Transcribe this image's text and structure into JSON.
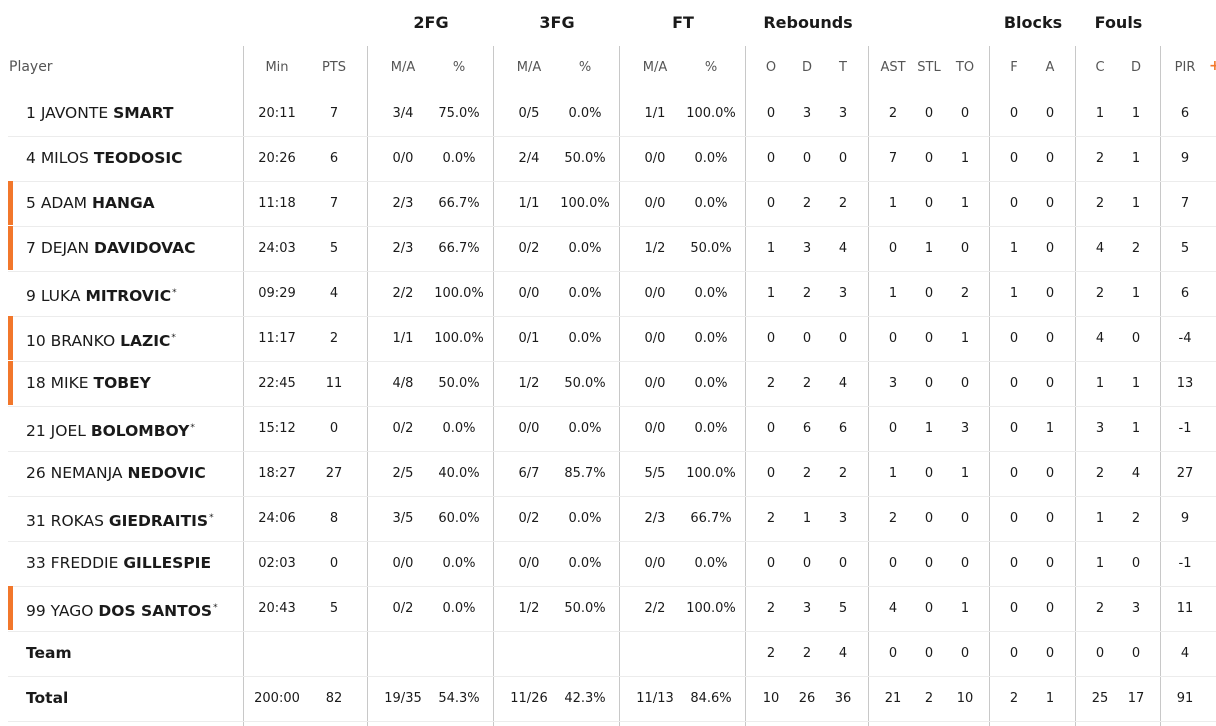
{
  "header": {
    "groups": {
      "fg2": "2FG",
      "fg3": "3FG",
      "ft": "FT",
      "rebounds": "Rebounds",
      "blocks": "Blocks",
      "fouls": "Fouls"
    },
    "columns": {
      "player": "Player",
      "min": "Min",
      "pts": "PTS",
      "fg2_ma": "M/A",
      "fg2_pct": "%",
      "fg3_ma": "M/A",
      "fg3_pct": "%",
      "ft_ma": "M/A",
      "ft_pct": "%",
      "reb_o": "O",
      "reb_d": "D",
      "reb_t": "T",
      "ast": "AST",
      "stl": "STL",
      "to": "TO",
      "blk_f": "F",
      "blk_a": "A",
      "foul_c": "C",
      "foul_d": "D",
      "pir": "PIR"
    },
    "more_icon": "+"
  },
  "players": [
    {
      "num": "1",
      "first": "JAVONTE",
      "last": "SMART",
      "mark": "",
      "starter": false,
      "min": "20:11",
      "pts": "7",
      "fg2_ma": "3/4",
      "fg2_pct": "75.0%",
      "fg3_ma": "0/5",
      "fg3_pct": "0.0%",
      "ft_ma": "1/1",
      "ft_pct": "100.0%",
      "reb_o": "0",
      "reb_d": "3",
      "reb_t": "3",
      "ast": "2",
      "stl": "0",
      "to": "0",
      "blk_f": "0",
      "blk_a": "0",
      "foul_c": "1",
      "foul_d": "1",
      "pir": "6"
    },
    {
      "num": "4",
      "first": "MILOS",
      "last": "TEODOSIC",
      "mark": "",
      "starter": false,
      "min": "20:26",
      "pts": "6",
      "fg2_ma": "0/0",
      "fg2_pct": "0.0%",
      "fg3_ma": "2/4",
      "fg3_pct": "50.0%",
      "ft_ma": "0/0",
      "ft_pct": "0.0%",
      "reb_o": "0",
      "reb_d": "0",
      "reb_t": "0",
      "ast": "7",
      "stl": "0",
      "to": "1",
      "blk_f": "0",
      "blk_a": "0",
      "foul_c": "2",
      "foul_d": "1",
      "pir": "9"
    },
    {
      "num": "5",
      "first": "ADAM",
      "last": "HANGA",
      "mark": "",
      "starter": true,
      "min": "11:18",
      "pts": "7",
      "fg2_ma": "2/3",
      "fg2_pct": "66.7%",
      "fg3_ma": "1/1",
      "fg3_pct": "100.0%",
      "ft_ma": "0/0",
      "ft_pct": "0.0%",
      "reb_o": "0",
      "reb_d": "2",
      "reb_t": "2",
      "ast": "1",
      "stl": "0",
      "to": "1",
      "blk_f": "0",
      "blk_a": "0",
      "foul_c": "2",
      "foul_d": "1",
      "pir": "7"
    },
    {
      "num": "7",
      "first": "DEJAN",
      "last": "DAVIDOVAC",
      "mark": "",
      "starter": true,
      "min": "24:03",
      "pts": "5",
      "fg2_ma": "2/3",
      "fg2_pct": "66.7%",
      "fg3_ma": "0/2",
      "fg3_pct": "0.0%",
      "ft_ma": "1/2",
      "ft_pct": "50.0%",
      "reb_o": "1",
      "reb_d": "3",
      "reb_t": "4",
      "ast": "0",
      "stl": "1",
      "to": "0",
      "blk_f": "1",
      "blk_a": "0",
      "foul_c": "4",
      "foul_d": "2",
      "pir": "5"
    },
    {
      "num": "9",
      "first": "LUKA",
      "last": "MITROVIC",
      "mark": "*",
      "starter": false,
      "min": "09:29",
      "pts": "4",
      "fg2_ma": "2/2",
      "fg2_pct": "100.0%",
      "fg3_ma": "0/0",
      "fg3_pct": "0.0%",
      "ft_ma": "0/0",
      "ft_pct": "0.0%",
      "reb_o": "1",
      "reb_d": "2",
      "reb_t": "3",
      "ast": "1",
      "stl": "0",
      "to": "2",
      "blk_f": "1",
      "blk_a": "0",
      "foul_c": "2",
      "foul_d": "1",
      "pir": "6"
    },
    {
      "num": "10",
      "first": "BRANKO",
      "last": "LAZIC",
      "mark": "*",
      "starter": true,
      "min": "11:17",
      "pts": "2",
      "fg2_ma": "1/1",
      "fg2_pct": "100.0%",
      "fg3_ma": "0/1",
      "fg3_pct": "0.0%",
      "ft_ma": "0/0",
      "ft_pct": "0.0%",
      "reb_o": "0",
      "reb_d": "0",
      "reb_t": "0",
      "ast": "0",
      "stl": "0",
      "to": "1",
      "blk_f": "0",
      "blk_a": "0",
      "foul_c": "4",
      "foul_d": "0",
      "pir": "-4"
    },
    {
      "num": "18",
      "first": "MIKE",
      "last": "TOBEY",
      "mark": "",
      "starter": true,
      "min": "22:45",
      "pts": "11",
      "fg2_ma": "4/8",
      "fg2_pct": "50.0%",
      "fg3_ma": "1/2",
      "fg3_pct": "50.0%",
      "ft_ma": "0/0",
      "ft_pct": "0.0%",
      "reb_o": "2",
      "reb_d": "2",
      "reb_t": "4",
      "ast": "3",
      "stl": "0",
      "to": "0",
      "blk_f": "0",
      "blk_a": "0",
      "foul_c": "1",
      "foul_d": "1",
      "pir": "13"
    },
    {
      "num": "21",
      "first": "JOEL",
      "last": "BOLOMBOY",
      "mark": "*",
      "starter": false,
      "min": "15:12",
      "pts": "0",
      "fg2_ma": "0/2",
      "fg2_pct": "0.0%",
      "fg3_ma": "0/0",
      "fg3_pct": "0.0%",
      "ft_ma": "0/0",
      "ft_pct": "0.0%",
      "reb_o": "0",
      "reb_d": "6",
      "reb_t": "6",
      "ast": "0",
      "stl": "1",
      "to": "3",
      "blk_f": "0",
      "blk_a": "1",
      "foul_c": "3",
      "foul_d": "1",
      "pir": "-1"
    },
    {
      "num": "26",
      "first": "NEMANJA",
      "last": "NEDOVIC",
      "mark": "",
      "starter": false,
      "min": "18:27",
      "pts": "27",
      "fg2_ma": "2/5",
      "fg2_pct": "40.0%",
      "fg3_ma": "6/7",
      "fg3_pct": "85.7%",
      "ft_ma": "5/5",
      "ft_pct": "100.0%",
      "reb_o": "0",
      "reb_d": "2",
      "reb_t": "2",
      "ast": "1",
      "stl": "0",
      "to": "1",
      "blk_f": "0",
      "blk_a": "0",
      "foul_c": "2",
      "foul_d": "4",
      "pir": "27"
    },
    {
      "num": "31",
      "first": "ROKAS",
      "last": "GIEDRAITIS",
      "mark": "*",
      "starter": false,
      "min": "24:06",
      "pts": "8",
      "fg2_ma": "3/5",
      "fg2_pct": "60.0%",
      "fg3_ma": "0/2",
      "fg3_pct": "0.0%",
      "ft_ma": "2/3",
      "ft_pct": "66.7%",
      "reb_o": "2",
      "reb_d": "1",
      "reb_t": "3",
      "ast": "2",
      "stl": "0",
      "to": "0",
      "blk_f": "0",
      "blk_a": "0",
      "foul_c": "1",
      "foul_d": "2",
      "pir": "9"
    },
    {
      "num": "33",
      "first": "FREDDIE",
      "last": "GILLESPIE",
      "mark": "",
      "starter": false,
      "min": "02:03",
      "pts": "0",
      "fg2_ma": "0/0",
      "fg2_pct": "0.0%",
      "fg3_ma": "0/0",
      "fg3_pct": "0.0%",
      "ft_ma": "0/0",
      "ft_pct": "0.0%",
      "reb_o": "0",
      "reb_d": "0",
      "reb_t": "0",
      "ast": "0",
      "stl": "0",
      "to": "0",
      "blk_f": "0",
      "blk_a": "0",
      "foul_c": "1",
      "foul_d": "0",
      "pir": "-1"
    },
    {
      "num": "99",
      "first": "YAGO",
      "last": "DOS SANTOS",
      "mark": "*",
      "starter": true,
      "min": "20:43",
      "pts": "5",
      "fg2_ma": "0/2",
      "fg2_pct": "0.0%",
      "fg3_ma": "1/2",
      "fg3_pct": "50.0%",
      "ft_ma": "2/2",
      "ft_pct": "100.0%",
      "reb_o": "2",
      "reb_d": "3",
      "reb_t": "5",
      "ast": "4",
      "stl": "0",
      "to": "1",
      "blk_f": "0",
      "blk_a": "0",
      "foul_c": "2",
      "foul_d": "3",
      "pir": "11"
    }
  ],
  "team": {
    "label": "Team",
    "reb_o": "2",
    "reb_d": "2",
    "reb_t": "4",
    "ast": "0",
    "stl": "0",
    "to": "0",
    "blk_f": "0",
    "blk_a": "0",
    "foul_c": "0",
    "foul_d": "0",
    "pir": "4"
  },
  "total": {
    "label": "Total",
    "min": "200:00",
    "pts": "82",
    "fg2_ma": "19/35",
    "fg2_pct": "54.3%",
    "fg3_ma": "11/26",
    "fg3_pct": "42.3%",
    "ft_ma": "11/13",
    "ft_pct": "84.6%",
    "reb_o": "10",
    "reb_d": "26",
    "reb_t": "36",
    "ast": "21",
    "stl": "2",
    "to": "10",
    "blk_f": "2",
    "blk_a": "1",
    "foul_c": "25",
    "foul_d": "17",
    "pir": "91"
  },
  "colors": {
    "accent": "#f2772b",
    "divider": "#c8c8c8",
    "row_line": "#ececec"
  }
}
